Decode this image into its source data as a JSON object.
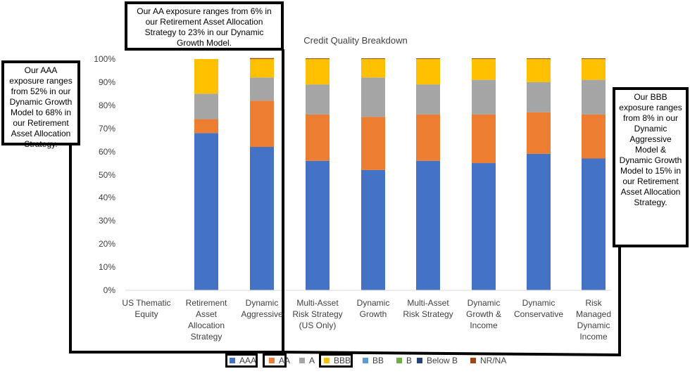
{
  "chart_data": {
    "type": "bar",
    "stacked": true,
    "title": "Credit Quality Breakdown",
    "categories": [
      [
        "US Thematic",
        "Equity"
      ],
      [
        "Retirement",
        "Asset",
        "Allocation",
        "Strategy"
      ],
      [
        "Dynamic",
        "Aggressive"
      ],
      [
        "Multi-Asset",
        "Risk Strategy",
        "(US Only)"
      ],
      [
        "Dynamic",
        "Growth"
      ],
      [
        "Multi-Asset",
        "Risk Strategy"
      ],
      [
        "Dynamic",
        "Growth &",
        "Income"
      ],
      [
        "Dynamic",
        "Conservative"
      ],
      [
        "Risk",
        "Managed",
        "Dynamic",
        "Income"
      ]
    ],
    "series": [
      {
        "name": "AAA",
        "color": "#4472C4",
        "values": [
          0,
          68,
          62,
          56,
          52,
          56,
          55,
          59,
          57
        ]
      },
      {
        "name": "AA",
        "color": "#ED7D31",
        "values": [
          0,
          6,
          20,
          20,
          23,
          20,
          21,
          18,
          19
        ]
      },
      {
        "name": "A",
        "color": "#A5A5A5",
        "values": [
          0,
          11,
          10,
          13,
          17,
          13,
          15,
          13,
          15
        ]
      },
      {
        "name": "BBB",
        "color": "#FFC000",
        "values": [
          0,
          15,
          8,
          11,
          8,
          11,
          9,
          10,
          9
        ]
      },
      {
        "name": "BB",
        "color": "#5B9BD5",
        "values": [
          0,
          0,
          0,
          0,
          0,
          0,
          0,
          0,
          0
        ]
      },
      {
        "name": "B",
        "color": "#70AD47",
        "values": [
          0,
          0,
          0,
          0,
          0,
          0,
          0,
          0,
          0
        ]
      },
      {
        "name": "Below B",
        "color": "#264478",
        "values": [
          0,
          0,
          0,
          0,
          0,
          0,
          0,
          0,
          0
        ]
      },
      {
        "name": "NR/NA",
        "color": "#9E480E",
        "values": [
          0,
          0,
          0.4,
          0.3,
          0.3,
          0.3,
          0.3,
          0.3,
          0.3
        ]
      }
    ],
    "yticks": [
      "0%",
      "10%",
      "20%",
      "30%",
      "40%",
      "50%",
      "60%",
      "70%",
      "80%",
      "90%",
      "100%"
    ],
    "ylim": [
      0,
      100
    ],
    "grid": false,
    "legend": "bottom"
  },
  "callouts": {
    "aaa": "Our AAA exposure ranges from 52% in our Dynamic Growth Model to 68% in our Retirement Asset Allocation Strategy.",
    "aa": "Our AA exposure ranges from 6% in our Retirement Asset Allocation Strategy to 23% in our Dynamic Growth Model.",
    "bbb": "Our BBB exposure ranges from 8% in our Dynamic Aggressive Model & Dynamic Growth Model to 15% in our Retirement Asset Allocation Strategy."
  }
}
